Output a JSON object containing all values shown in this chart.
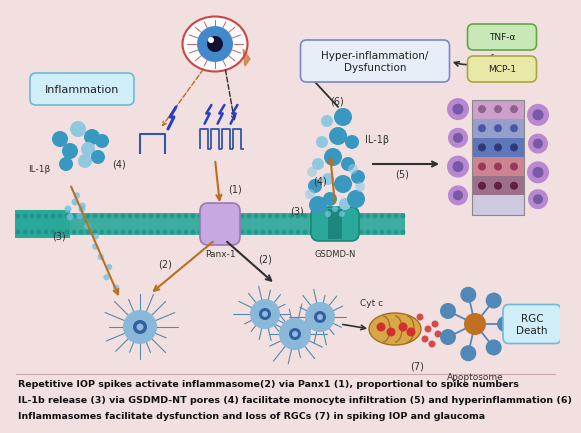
{
  "background_color": "#f2e0e0",
  "caption_lines": [
    "Repetitive IOP spikes activate inflammasome(2) via Panx1 (1), proportional to spike numbers",
    "IL-1b release (3) via GSDMD-NT pores (4) facilitate monocyte infiltration (5) and hyperinflammation (6)",
    "Inflammasomes facilitate dysfunction and loss of RGCs (7) in spiking IOP and glaucoma"
  ],
  "membrane_color": "#2aa89a",
  "membrane_dot_color": "#1a8878",
  "panx1_color": "#c8a8e0",
  "panx1_edge": "#9878b8",
  "gsdmd_color": "#2aa89a",
  "gsdmd_edge": "#1a8878",
  "inflammation_box_fc": "#d0eef8",
  "inflammation_box_ec": "#70b8d8",
  "hyper_box_fc": "#e8eef8",
  "hyper_box_ec": "#7888c8",
  "tnf_box_fc": "#c8e8b8",
  "tnf_box_ec": "#60a840",
  "mcp_box_fc": "#e8e8a8",
  "mcp_box_ec": "#a8a840",
  "rgc_box_fc": "#d0eef8",
  "rgc_box_ec": "#70b8d8",
  "il1b_big_color": "#3898c0",
  "il1b_small_color": "#90c8e0",
  "spike_color": "#2840c0",
  "arrow_brown": "#b87020",
  "arrow_dark": "#303030",
  "cell_body_color": "#7ab8d8",
  "cell_nucleus_color": "#3060a0",
  "cell_spike_color": "#5888a8",
  "mito_color": "#d8a848",
  "mito_red": "#d03030",
  "apo_arm_color": "#5088b8",
  "apo_center_color": "#c07020",
  "ret_layers": [
    "#c898c8",
    "#8898c8",
    "#4868b8",
    "#c87888",
    "#906080",
    "#c8c8e0"
  ],
  "ret_cell_color": "#b888d0",
  "ret_cell_dark": "#7858a8"
}
